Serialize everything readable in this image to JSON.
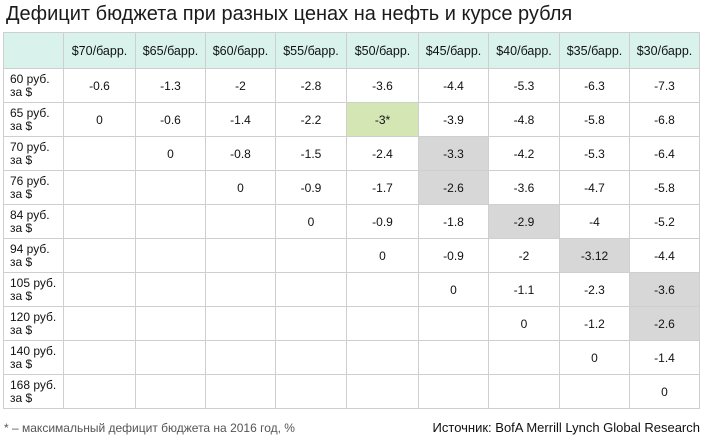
{
  "title": "Дефицит бюджета при разных ценах на нефть и курсе рубля",
  "columns": [
    "$70/барр.",
    "$65/барр.",
    "$60/барр.",
    "$55/барр.",
    "$50/барр.",
    "$45/барр.",
    "$40/барр.",
    "$35/барр.",
    "$30/барр."
  ],
  "rows": [
    {
      "label": "60 руб. за $",
      "cells": [
        "-0.6",
        "-1.3",
        "-2",
        "-2.8",
        "-3.6",
        "-4.4",
        "-5.3",
        "-6.3",
        "-7.3"
      ]
    },
    {
      "label": "65 руб. за $",
      "cells": [
        "0",
        "-0.6",
        "-1.4",
        "-2.2",
        "-3*",
        "-3.9",
        "-4.8",
        "-5.8",
        "-6.8"
      ]
    },
    {
      "label": "70 руб. за $",
      "cells": [
        "",
        "0",
        "-0.8",
        "-1.5",
        "-2.4",
        "-3.3",
        "-4.2",
        "-5.3",
        "-6.4"
      ]
    },
    {
      "label": "76 руб. за $",
      "cells": [
        "",
        "",
        "0",
        "-0.9",
        "-1.7",
        "-2.6",
        "-3.6",
        "-4.7",
        "-5.8"
      ]
    },
    {
      "label": "84 руб. за $",
      "cells": [
        "",
        "",
        "",
        "0",
        "-0.9",
        "-1.8",
        "-2.9",
        "-4",
        "-5.2"
      ]
    },
    {
      "label": "94 руб. за $",
      "cells": [
        "",
        "",
        "",
        "",
        "0",
        "-0.9",
        "-2",
        "-3.12",
        "-4.4"
      ]
    },
    {
      "label": "105 руб. за $",
      "cells": [
        "",
        "",
        "",
        "",
        "",
        "0",
        "-1.1",
        "-2.3",
        "-3.6"
      ]
    },
    {
      "label": "120 руб. за $",
      "cells": [
        "",
        "",
        "",
        "",
        "",
        "",
        "0",
        "-1.2",
        "-2.6"
      ]
    },
    {
      "label": "140 руб. за $",
      "cells": [
        "",
        "",
        "",
        "",
        "",
        "",
        "",
        "0",
        "-1.4"
      ]
    },
    {
      "label": "168 руб. за $",
      "cells": [
        "",
        "",
        "",
        "",
        "",
        "",
        "",
        "",
        "0"
      ]
    }
  ],
  "highlights": {
    "green": [
      [
        1,
        4
      ]
    ],
    "grey": [
      [
        2,
        5
      ],
      [
        3,
        5
      ],
      [
        4,
        6
      ],
      [
        5,
        7
      ],
      [
        6,
        8
      ],
      [
        7,
        8
      ]
    ],
    "green_color": "#d5e6b5",
    "grey_color": "#d7d7d7",
    "header_color": "#d9f3ec"
  },
  "footnote": "* – максимальный дефицит бюджета на 2016 год, %",
  "source": "Источник: BofA Merrill Lynch Global Research"
}
